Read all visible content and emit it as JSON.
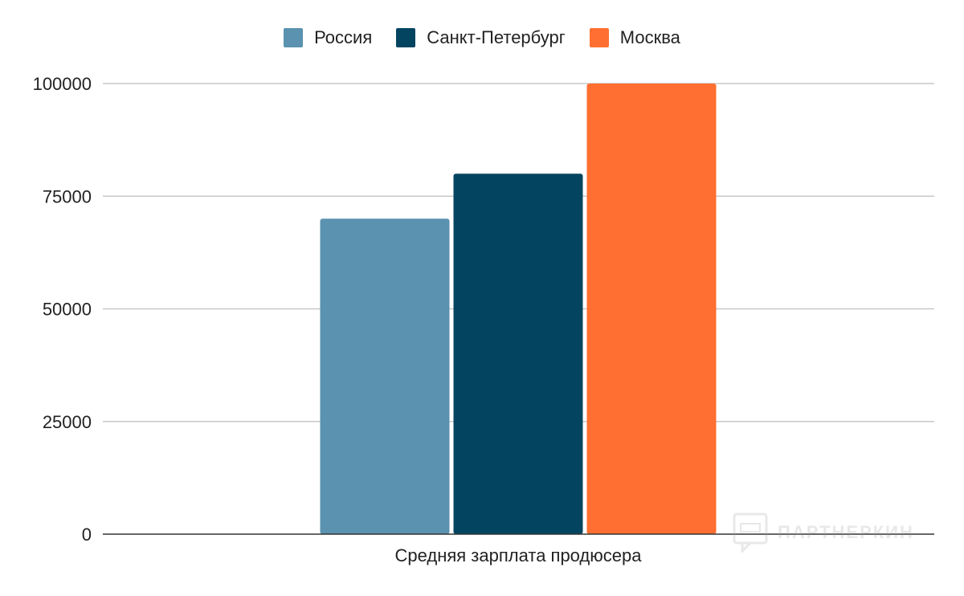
{
  "chart_data": {
    "type": "bar",
    "categories": [
      "Средняя зарплата продюсера"
    ],
    "series": [
      {
        "name": "Россия",
        "values": [
          70000
        ],
        "color": "#5a92b0"
      },
      {
        "name": "Санкт-Петербург",
        "values": [
          80000
        ],
        "color": "#034561"
      },
      {
        "name": "Москва",
        "values": [
          100000
        ],
        "color": "#ff6f31"
      }
    ],
    "title": "",
    "xlabel": "",
    "ylabel": "",
    "ylim": [
      0,
      100000
    ],
    "yticks": [
      "0",
      "25000",
      "50000",
      "75000",
      "100000"
    ],
    "grid": true,
    "legend_position": "top-center"
  },
  "watermark": {
    "text": "ПАРТНЕРКИН",
    "icon": "chat-bubble-icon"
  }
}
